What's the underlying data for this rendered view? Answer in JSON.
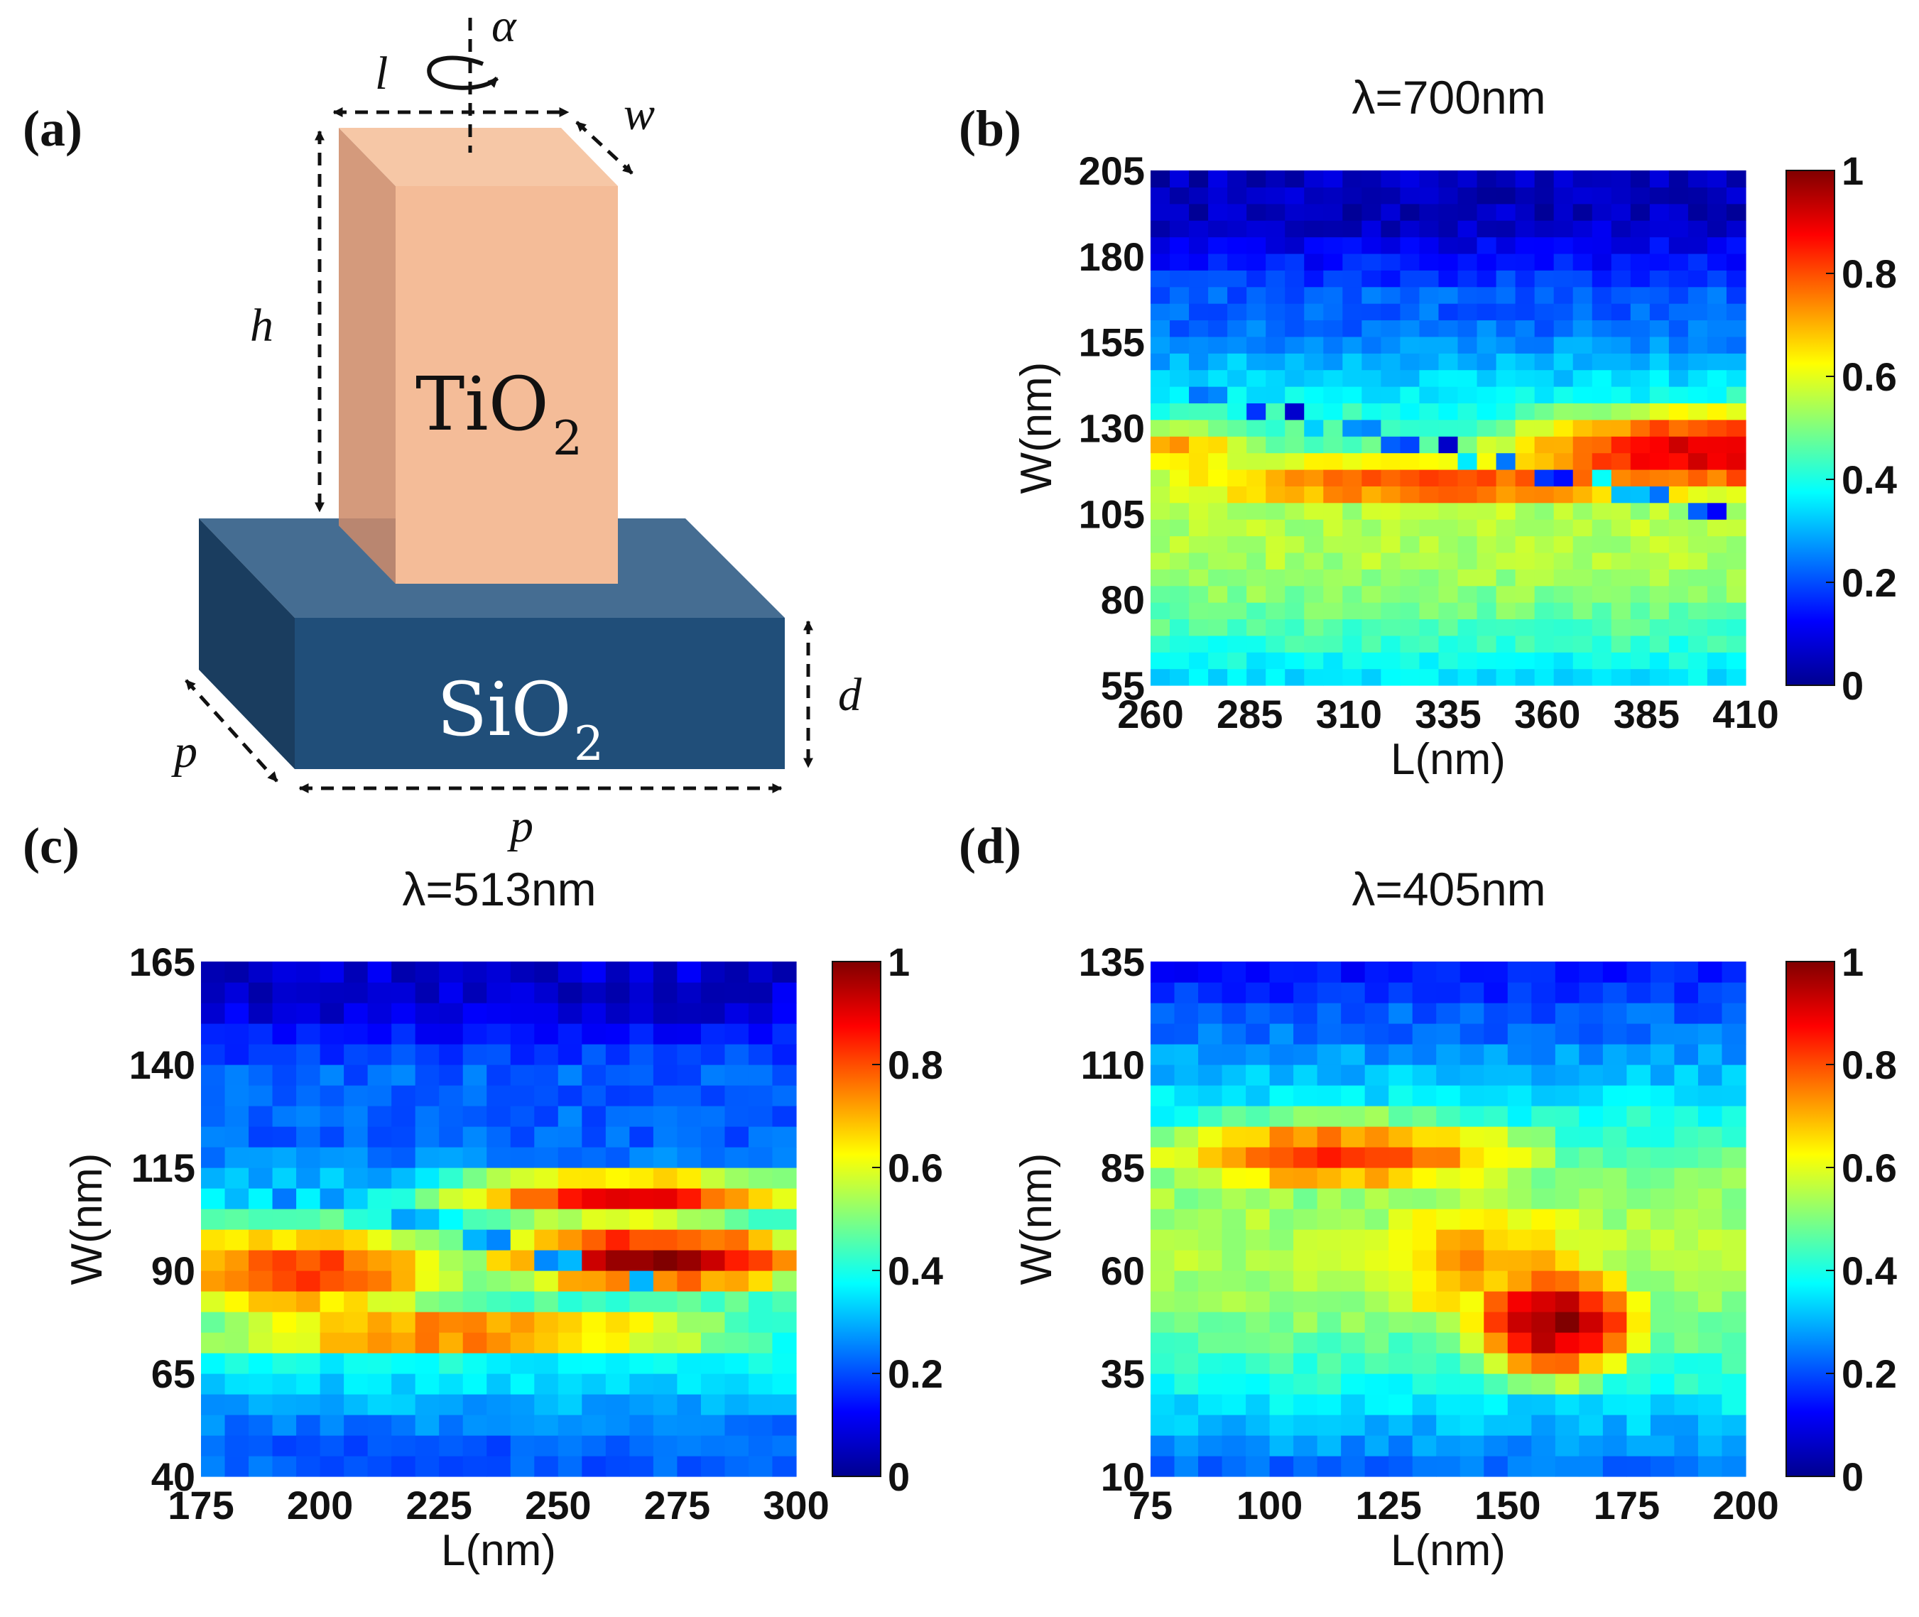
{
  "panels": {
    "a": "(a)",
    "b": "(b)",
    "c": "(c)",
    "d": "(d)"
  },
  "schematic": {
    "top_material": "TiO",
    "top_material_sub": "2",
    "bottom_material": "SiO",
    "bottom_material_sub": "2",
    "labels": {
      "l": "l",
      "w": "w",
      "h": "h",
      "alpha": "α",
      "p_side": "p",
      "p_bottom": "p",
      "d": "d"
    },
    "colors": {
      "pillar_front": "#f4bc98",
      "pillar_side": "#d49a7c",
      "pillar_top": "#f6c7a6",
      "base_front": "#204e79",
      "base_side": "#1a3d5f",
      "base_top": "#456d92"
    }
  },
  "colorbar": {
    "min": 0,
    "max": 1,
    "ticks": [
      "0",
      "0.2",
      "0.4",
      "0.6",
      "0.8",
      "1"
    ],
    "colormap": "jet"
  },
  "chart_data": [
    {
      "id": "b",
      "type": "heatmap",
      "title": "λ=700nm",
      "xlabel": "L(nm)",
      "ylabel": "W(nm)",
      "xlim": [
        260,
        410
      ],
      "ylim": [
        55,
        205
      ],
      "xticks": [
        "260",
        "285",
        "310",
        "335",
        "360",
        "385",
        "410"
      ],
      "yticks": [
        "55",
        "80",
        "105",
        "130",
        "155",
        "180",
        "205"
      ],
      "grid": [
        31,
        31
      ],
      "features": {
        "blobs": [
          {
            "x": 400,
            "y": 123,
            "sx": 55,
            "sy": 13,
            "v": 0.92
          },
          {
            "x": 335,
            "y": 114,
            "sx": 90,
            "sy": 10,
            "v": 0.8
          },
          {
            "x": 265,
            "y": 124,
            "sx": 25,
            "sy": 8,
            "v": 0.72
          }
        ],
        "bands": [
          {
            "y": 100,
            "s": 45,
            "v": 0.55
          }
        ],
        "top_low": {
          "y_from": 168,
          "v": 0.06
        },
        "dip_line": {
          "x0": 262,
          "y0": 142,
          "x1": 405,
          "y1": 106,
          "v": 0.1
        },
        "dark_row": {
          "y": 174,
          "v": 0.12
        }
      }
    },
    {
      "id": "c",
      "type": "heatmap",
      "title": "λ=513nm",
      "xlabel": "L(nm)",
      "ylabel": "W(nm)",
      "xlim": [
        175,
        300
      ],
      "ylim": [
        40,
        165
      ],
      "xticks": [
        "175",
        "200",
        "225",
        "250",
        "275",
        "300"
      ],
      "yticks": [
        "40",
        "65",
        "90",
        "115",
        "140",
        "165"
      ],
      "grid": [
        25,
        25
      ],
      "features": {
        "blobs": [
          {
            "x": 270,
            "y": 93,
            "sx": 35,
            "sy": 8,
            "v": 0.97
          },
          {
            "x": 265,
            "y": 108,
            "sx": 40,
            "sy": 6,
            "v": 0.88
          },
          {
            "x": 195,
            "y": 90,
            "sx": 40,
            "sy": 12,
            "v": 0.82
          },
          {
            "x": 230,
            "y": 75,
            "sx": 60,
            "sy": 6,
            "v": 0.8
          }
        ],
        "bands": [
          {
            "y": 85,
            "s": 30,
            "v": 0.45
          }
        ],
        "top_low": {
          "y_from": 138,
          "v": 0.08
        },
        "dip_line": {
          "x0": 180,
          "y0": 112,
          "x1": 270,
          "y1": 88,
          "v": 0.15
        },
        "dark_row": {
          "y": 50,
          "v": 0.15
        }
      }
    },
    {
      "id": "d",
      "type": "heatmap",
      "title": "λ=405nm",
      "xlabel": "L(nm)",
      "ylabel": "W(nm)",
      "xlim": [
        75,
        200
      ],
      "ylim": [
        10,
        135
      ],
      "xticks": [
        "75",
        "100",
        "125",
        "150",
        "175",
        "200"
      ],
      "yticks": [
        "10",
        "35",
        "60",
        "85",
        "110",
        "135"
      ],
      "grid": [
        25,
        25
      ],
      "features": {
        "blobs": [
          {
            "x": 160,
            "y": 48,
            "sx": 18,
            "sy": 14,
            "v": 1.0
          },
          {
            "x": 115,
            "y": 88,
            "sx": 45,
            "sy": 10,
            "v": 0.82
          },
          {
            "x": 145,
            "y": 62,
            "sx": 35,
            "sy": 22,
            "v": 0.72
          }
        ],
        "bands": [
          {
            "y": 65,
            "s": 40,
            "v": 0.55
          }
        ],
        "top_low": {
          "y_from": 122,
          "v": 0.15
        },
        "dip_line": null,
        "dark_row": null
      }
    }
  ]
}
